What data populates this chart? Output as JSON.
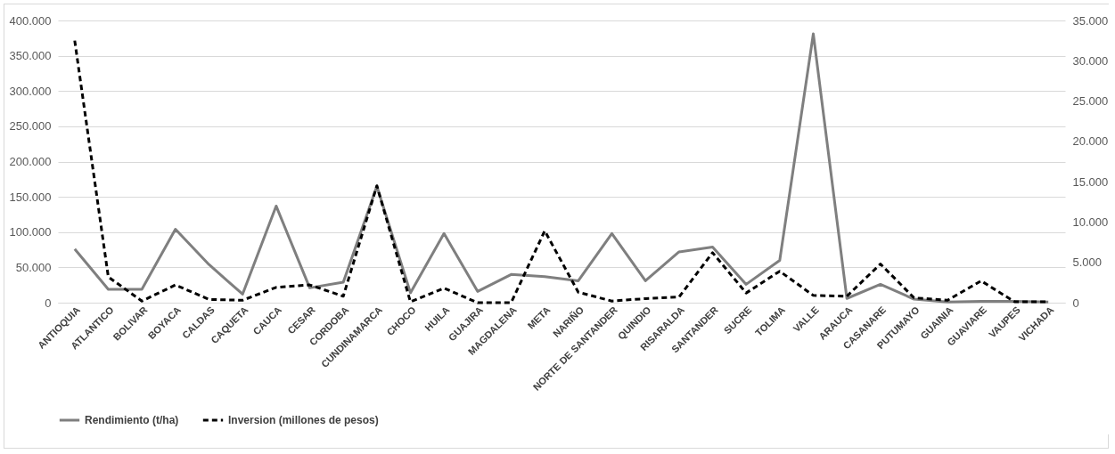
{
  "chart_data": {
    "type": "line",
    "categories": [
      "ANTIOQUIA",
      "ATLANTICO",
      "BOLIVAR",
      "BOYACA",
      "CALDAS",
      "CAQUETA",
      "CAUCA",
      "CESAR",
      "CORDOBA",
      "CUNDINAMARCA",
      "CHOCO",
      "HUILA",
      "GUAJIRA",
      "MAGDALENA",
      "META",
      "NARIÑO",
      "NORTE DE SANTANDER",
      "QUINDIO",
      "RISARALDA",
      "SANTANDER",
      "SUCRE",
      "TOLIMA",
      "VALLE",
      "ARAUCA",
      "CASANARE",
      "PUTUMAYO",
      "GUAINIA",
      "GUAVIARE",
      "VAUPES",
      "VICHADA"
    ],
    "series": [
      {
        "name": "Rendimiento (t/ha)",
        "color": "#7f7f7f",
        "line_style": "solid",
        "values": [
          76000,
          19000,
          19000,
          104000,
          54000,
          12000,
          137000,
          21000,
          29000,
          165000,
          14000,
          98000,
          16000,
          40000,
          37000,
          31000,
          98000,
          31000,
          72000,
          79000,
          26000,
          60000,
          381000,
          6000,
          26000,
          5000,
          1000,
          2000,
          2000,
          1000
        ]
      },
      {
        "name": "Inversion (millones de pesos)",
        "color": "#000000",
        "line_style": "dashed",
        "axis": "y2",
        "values": [
          32500,
          3200,
          200,
          2200,
          400,
          300,
          1900,
          2200,
          800,
          14500,
          100,
          1800,
          0,
          0,
          8900,
          1300,
          200,
          500,
          700,
          6200,
          1200,
          3900,
          900,
          800,
          4800,
          600,
          300,
          2700,
          100,
          100
        ]
      }
    ],
    "ylim": [
      0,
      400000
    ],
    "yticks": [
      {
        "value": 0,
        "label": "0"
      },
      {
        "value": 50000,
        "label": "50.000"
      },
      {
        "value": 100000,
        "label": "100.000"
      },
      {
        "value": 150000,
        "label": "150.000"
      },
      {
        "value": 200000,
        "label": "200.000"
      },
      {
        "value": 250000,
        "label": "250.000"
      },
      {
        "value": 300000,
        "label": "300.000"
      },
      {
        "value": 350000,
        "label": "350.000"
      },
      {
        "value": 400000,
        "label": "400.000"
      }
    ],
    "y2lim": [
      0,
      35000
    ],
    "y2ticks": [
      {
        "value": 0,
        "label": "0"
      },
      {
        "value": 5000,
        "label": "5.000"
      },
      {
        "value": 10000,
        "label": "10.000"
      },
      {
        "value": 15000,
        "label": "15.000"
      },
      {
        "value": 20000,
        "label": "20.000"
      },
      {
        "value": 25000,
        "label": "25.000"
      },
      {
        "value": 30000,
        "label": "30.000"
      },
      {
        "value": 35000,
        "label": "35.000"
      }
    ],
    "grid": "y",
    "legend": "bottom",
    "marker": "none"
  }
}
